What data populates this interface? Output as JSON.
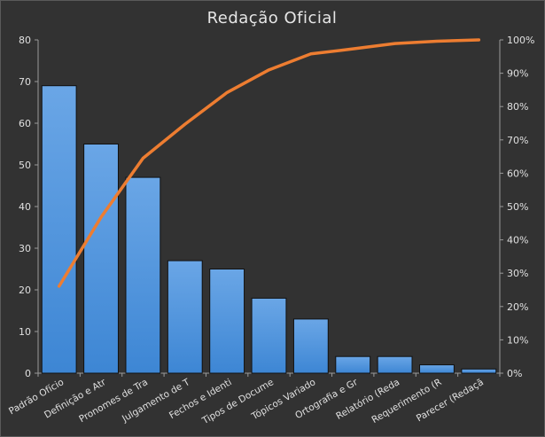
{
  "chart_data": {
    "type": "bar",
    "title": "Redação  Oficial",
    "xlabel": "",
    "ylabel": "",
    "ylim": [
      0,
      80
    ],
    "y2lim": [
      0,
      100
    ],
    "yticks": [
      "0",
      "10",
      "20",
      "30",
      "40",
      "50",
      "60",
      "70",
      "80"
    ],
    "y2ticks": [
      "0%",
      "10%",
      "20%",
      "30%",
      "40%",
      "50%",
      "60%",
      "70%",
      "80%",
      "90%",
      "100%"
    ],
    "grid": false,
    "legend": "none",
    "categories": [
      "Padrão Ofício",
      "Definição e Atr",
      "Pronomes de Tra",
      "Julgamento de T",
      "Fechos e Identi",
      "Tipos de Docume",
      "Tópicos Variado",
      "Ortografia e Gr",
      "Relatório (Reda",
      "Requerimento (R",
      "Parecer (Redaçã"
    ],
    "series": [
      {
        "type": "bar",
        "axis": "left",
        "values": [
          69,
          55,
          47,
          27,
          25,
          18,
          13,
          4,
          4,
          2,
          1
        ],
        "color": "#4a90d9"
      },
      {
        "type": "line",
        "axis": "right",
        "values": [
          26.1,
          46.8,
          64.5,
          74.7,
          84.2,
          91.0,
          95.8,
          97.3,
          98.9,
          99.6,
          100.0
        ],
        "color": "#ed7d31"
      }
    ]
  }
}
